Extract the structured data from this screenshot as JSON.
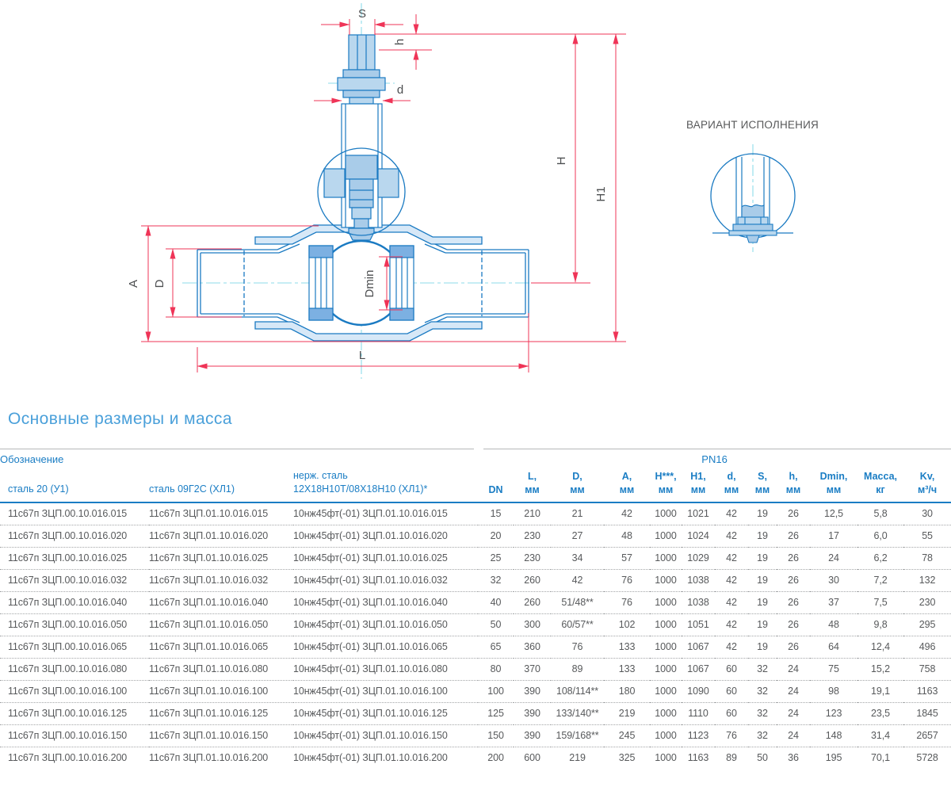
{
  "colors": {
    "dimension_red": "#ef3457",
    "drawing_blue": "#1a7ac2",
    "fill_light": "#b9d7ee",
    "fill_mid": "#a9cce9",
    "centerline_cyan": "#8edbea",
    "table_blue": "#1a7dc4",
    "title_blue": "#4aa0da",
    "text_gray": "#57595b"
  },
  "drawing": {
    "labels": {
      "S": "S",
      "h": "h",
      "d": "d",
      "H": "H",
      "H1": "H1",
      "A": "A",
      "D": "D",
      "Dmin": "Dmin",
      "L": "L"
    },
    "variant_label": "ВАРИАНТ ИСПОЛНЕНИЯ"
  },
  "section_title": "Основные размеры и масса",
  "table": {
    "header": {
      "designation": "Обозначение",
      "pn": "PN16"
    },
    "material_columns": {
      "col1": "сталь 20 (У1)",
      "col2": "сталь 09Г2С (ХЛ1)",
      "col3_line1": "нерж. сталь",
      "col3_line2": "12Х18Н10Т/08Х18Н10 (ХЛ1)*"
    },
    "dim_columns": [
      {
        "label": "DN",
        "unit": ""
      },
      {
        "label": "L,",
        "unit": "мм"
      },
      {
        "label": "D,",
        "unit": "мм"
      },
      {
        "label": "A,",
        "unit": "мм"
      },
      {
        "label": "H***,",
        "unit": "мм"
      },
      {
        "label": "H1,",
        "unit": "мм"
      },
      {
        "label": "d,",
        "unit": "мм"
      },
      {
        "label": "S,",
        "unit": "мм"
      },
      {
        "label": "h,",
        "unit": "мм"
      },
      {
        "label": "Dmin,",
        "unit": "мм"
      },
      {
        "label": "Масса,",
        "unit": "кг"
      },
      {
        "label": "Kv,",
        "unit": "м³/ч"
      }
    ],
    "rows": [
      [
        "11с67п ЗЦП.00.10.016.015",
        "11с67п ЗЦП.01.10.016.015",
        "10нж45фт(-01) ЗЦП.01.10.016.015",
        "15",
        "210",
        "21",
        "42",
        "1000",
        "1021",
        "42",
        "19",
        "26",
        "12,5",
        "5,8",
        "30"
      ],
      [
        "11с67п ЗЦП.00.10.016.020",
        "11с67п ЗЦП.01.10.016.020",
        "10нж45фт(-01) ЗЦП.01.10.016.020",
        "20",
        "230",
        "27",
        "48",
        "1000",
        "1024",
        "42",
        "19",
        "26",
        "17",
        "6,0",
        "55"
      ],
      [
        "11с67п ЗЦП.00.10.016.025",
        "11с67п ЗЦП.01.10.016.025",
        "10нж45фт(-01) ЗЦП.01.10.016.025",
        "25",
        "230",
        "34",
        "57",
        "1000",
        "1029",
        "42",
        "19",
        "26",
        "24",
        "6,2",
        "78"
      ],
      [
        "11с67п ЗЦП.00.10.016.032",
        "11с67п ЗЦП.01.10.016.032",
        "10нж45фт(-01) ЗЦП.01.10.016.032",
        "32",
        "260",
        "42",
        "76",
        "1000",
        "1038",
        "42",
        "19",
        "26",
        "30",
        "7,2",
        "132"
      ],
      [
        "11с67п ЗЦП.00.10.016.040",
        "11с67п ЗЦП.01.10.016.040",
        "10нж45фт(-01) ЗЦП.01.10.016.040",
        "40",
        "260",
        "51/48**",
        "76",
        "1000",
        "1038",
        "42",
        "19",
        "26",
        "37",
        "7,5",
        "230"
      ],
      [
        "11с67п ЗЦП.00.10.016.050",
        "11с67п ЗЦП.01.10.016.050",
        "10нж45фт(-01) ЗЦП.01.10.016.050",
        "50",
        "300",
        "60/57**",
        "102",
        "1000",
        "1051",
        "42",
        "19",
        "26",
        "48",
        "9,8",
        "295"
      ],
      [
        "11с67п ЗЦП.00.10.016.065",
        "11с67п ЗЦП.01.10.016.065",
        "10нж45фт(-01) ЗЦП.01.10.016.065",
        "65",
        "360",
        "76",
        "133",
        "1000",
        "1067",
        "42",
        "19",
        "26",
        "64",
        "12,4",
        "496"
      ],
      [
        "11с67п ЗЦП.00.10.016.080",
        "11с67п ЗЦП.01.10.016.080",
        "10нж45фт(-01) ЗЦП.01.10.016.080",
        "80",
        "370",
        "89",
        "133",
        "1000",
        "1067",
        "60",
        "32",
        "24",
        "75",
        "15,2",
        "758"
      ],
      [
        "11с67п ЗЦП.00.10.016.100",
        "11с67п ЗЦП.01.10.016.100",
        "10нж45фт(-01) ЗЦП.01.10.016.100",
        "100",
        "390",
        "108/114**",
        "180",
        "1000",
        "1090",
        "60",
        "32",
        "24",
        "98",
        "19,1",
        "1163"
      ],
      [
        "11с67п ЗЦП.00.10.016.125",
        "11с67п ЗЦП.01.10.016.125",
        "10нж45фт(-01) ЗЦП.01.10.016.125",
        "125",
        "390",
        "133/140**",
        "219",
        "1000",
        "1110",
        "60",
        "32",
        "24",
        "123",
        "23,5",
        "1845"
      ],
      [
        "11с67п ЗЦП.00.10.016.150",
        "11с67п ЗЦП.01.10.016.150",
        "10нж45фт(-01) ЗЦП.01.10.016.150",
        "150",
        "390",
        "159/168**",
        "245",
        "1000",
        "1123",
        "76",
        "32",
        "24",
        "148",
        "31,4",
        "2657"
      ],
      [
        "11с67п ЗЦП.00.10.016.200",
        "11с67п ЗЦП.01.10.016.200",
        "10нж45фт(-01) ЗЦП.01.10.016.200",
        "200",
        "600",
        "219",
        "325",
        "1000",
        "1163",
        "89",
        "50",
        "36",
        "195",
        "70,1",
        "5728"
      ]
    ]
  }
}
